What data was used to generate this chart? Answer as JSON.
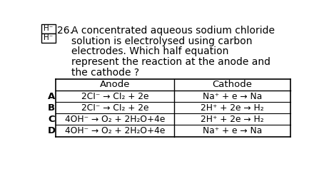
{
  "question_number": "26.",
  "question_lines": [
    "A concentrated aqueous sodium chloride",
    "solution is electrolysed using carbon",
    "electrodes. Which half equation",
    "represent the reaction at the anode and",
    "the cathode ?"
  ],
  "left_box_labels": [
    "H⁻",
    "H⁻"
  ],
  "col_header": [
    "Anode",
    "Cathode"
  ],
  "row_labels": [
    "A",
    "B",
    "C",
    "D"
  ],
  "rows": [
    [
      "2CI⁻ → CI₂ + 2e",
      "Na⁺ + e → Na"
    ],
    [
      "2CI⁻ → CI₂ + 2e",
      "2H⁺ + 2e → H₂"
    ],
    [
      "4OH⁻ → O₂ + 2H₂O+4e",
      "2H⁺ + 2e → H₂"
    ],
    [
      "4OH⁻ → O₂ + 2H₂O+4e",
      "Na⁺ + e → Na"
    ]
  ],
  "bg_color": "#ffffff",
  "text_color": "#000000"
}
